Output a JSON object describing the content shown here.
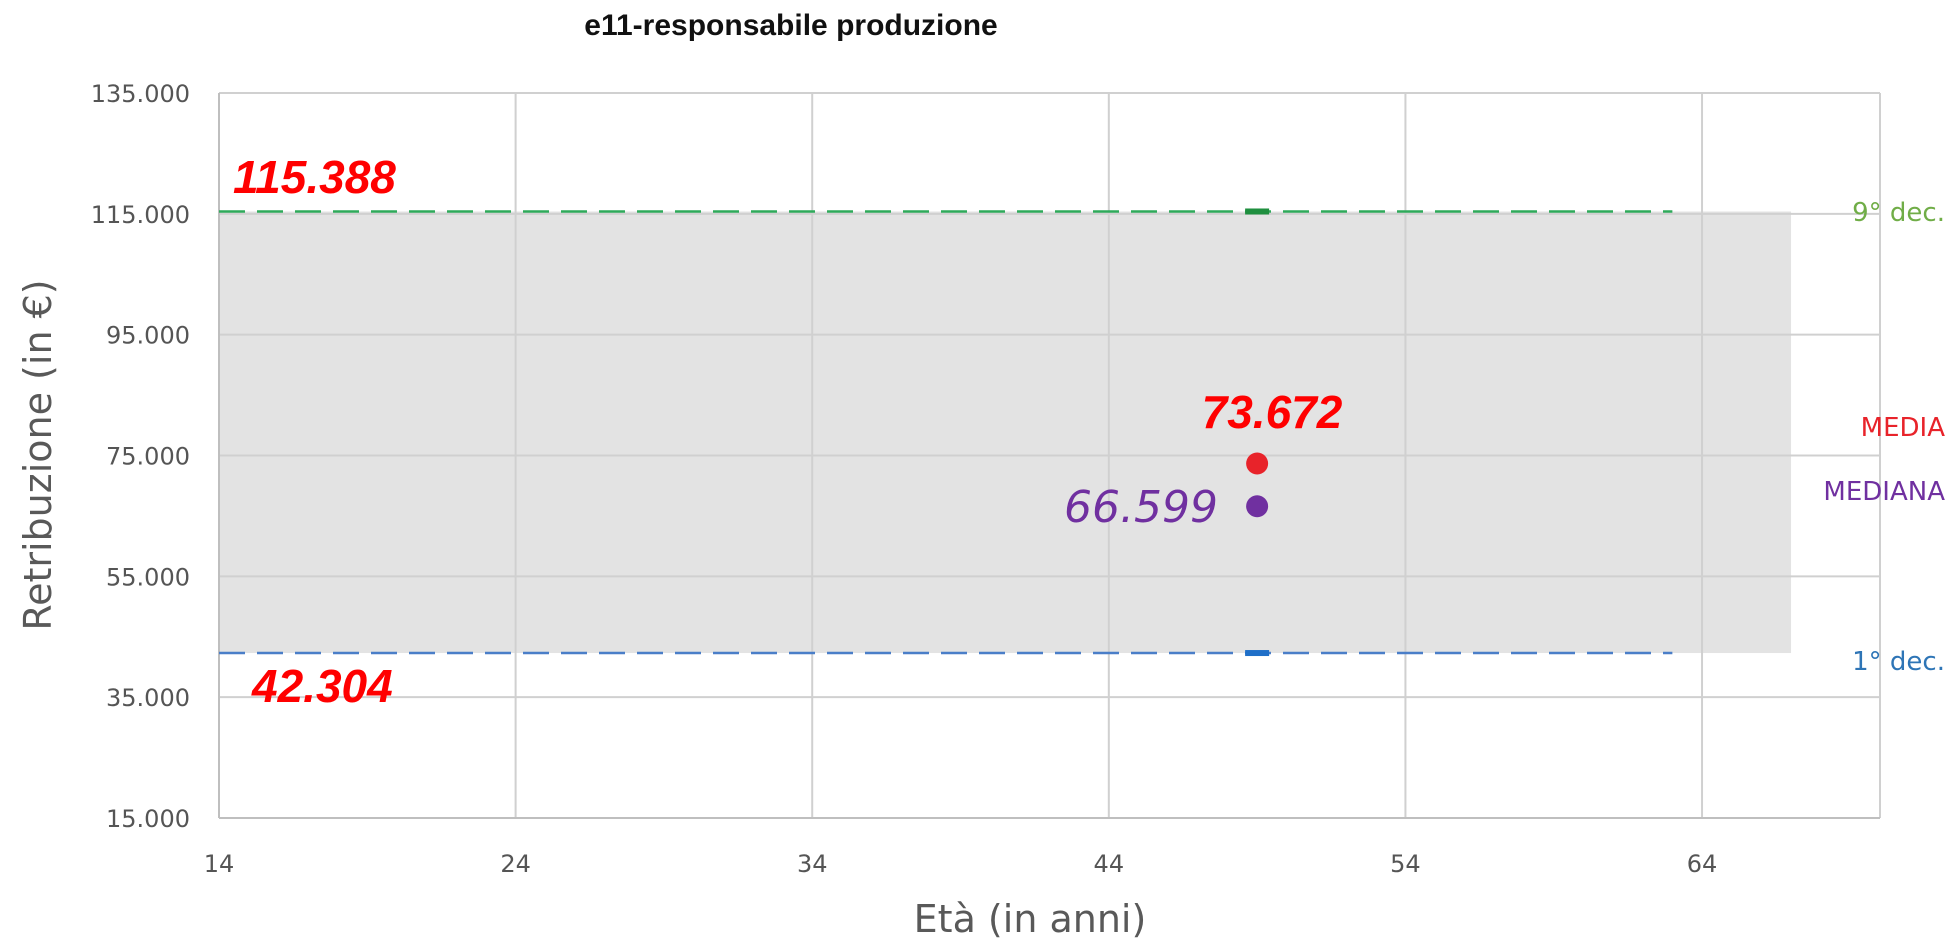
{
  "chart_data": {
    "type": "scatter",
    "title": "e11-responsabile produzione",
    "xlabel": "Età (in anni)",
    "ylabel": "Retribuzione (in €)",
    "xlim": [
      14,
      70
    ],
    "ylim": [
      15000,
      135000
    ],
    "x_ticks": [
      14,
      24,
      34,
      44,
      54,
      64
    ],
    "x_tick_labels": [
      "14",
      "24",
      "34",
      "44",
      "54",
      "64"
    ],
    "y_ticks": [
      15000,
      35000,
      55000,
      75000,
      95000,
      115000,
      135000
    ],
    "y_tick_labels": [
      "15.000",
      "35.000",
      "55.000",
      "75.000",
      "95.000",
      "115.000",
      "135.000"
    ],
    "grid": true,
    "band": {
      "x_range": [
        14,
        67
      ],
      "y_range": [
        42304,
        115388
      ],
      "color": "#e3e3e3"
    },
    "decile_lines": [
      {
        "name": "9° dec.",
        "value": 115388,
        "x_range": [
          14,
          63
        ],
        "color": "#2eaa5a",
        "value_label": "115.388",
        "label_color": "#70ad47"
      },
      {
        "name": "1° dec.",
        "value": 42304,
        "x_range": [
          14,
          63
        ],
        "color": "#4a7ec8",
        "value_label": "42.304",
        "label_color": "#2e75b6"
      }
    ],
    "points": [
      {
        "name": "MEDIA",
        "x": 49,
        "y": 73672,
        "value_label": "73.672",
        "color": "#e8232a"
      },
      {
        "name": "MEDIANA",
        "x": 49,
        "y": 66599,
        "value_label": "66.599",
        "color": "#7030a0"
      }
    ],
    "decile_markers": [
      {
        "x": 49,
        "y": 115388,
        "color": "#1f8f3f"
      },
      {
        "x": 49,
        "y": 42304,
        "color": "#1f6fc8"
      }
    ],
    "value_label_color": "#ff0000"
  }
}
